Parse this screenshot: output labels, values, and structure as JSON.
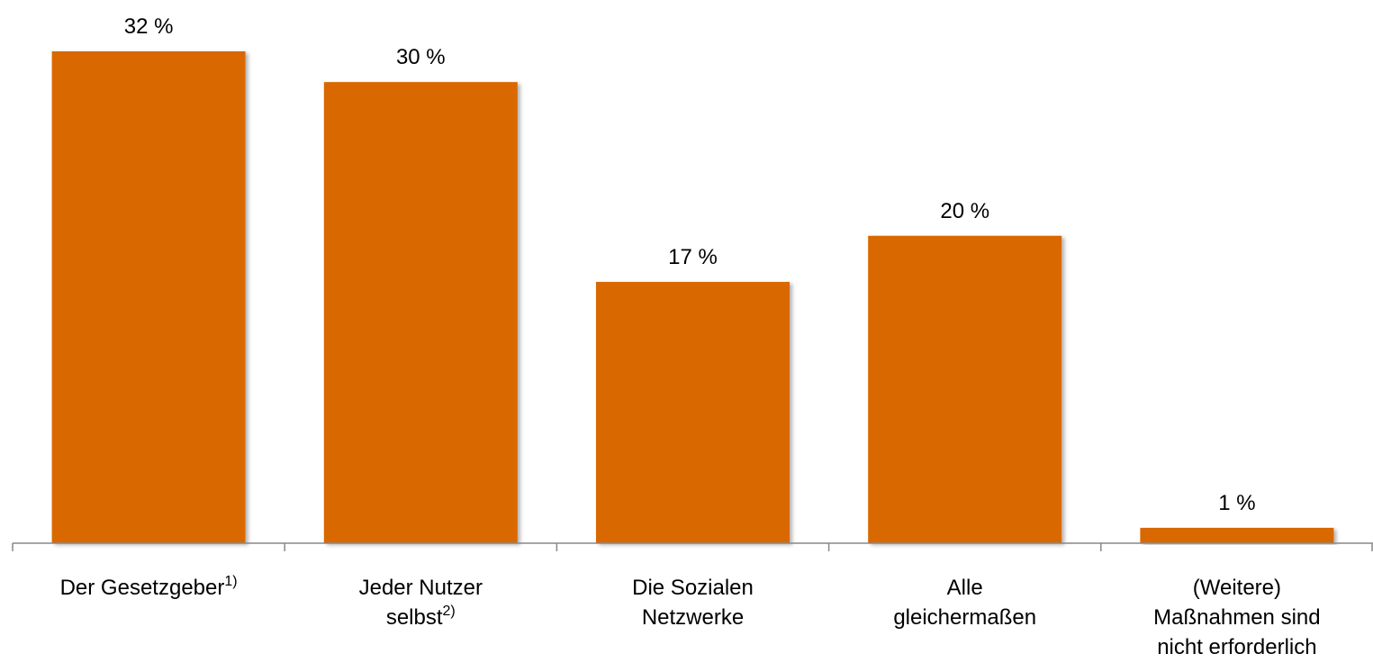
{
  "chart_data": {
    "type": "bar",
    "categories": [
      "Der Gesetzgeber",
      "Jeder Nutzer\nselbst",
      "Die Sozialen\nNetzwerke",
      "Alle\ngleichermaßen",
      "(Weitere)\nMaßnahmen sind\nnicht erforderlich"
    ],
    "category_notes": [
      "1)",
      "2)",
      null,
      null,
      null
    ],
    "values": [
      32,
      30,
      17,
      20,
      1
    ],
    "value_labels": [
      "32 %",
      "30 %",
      "17 %",
      "20 %",
      "1 %"
    ],
    "color": "#d96800",
    "ylim": [
      0,
      32
    ]
  }
}
